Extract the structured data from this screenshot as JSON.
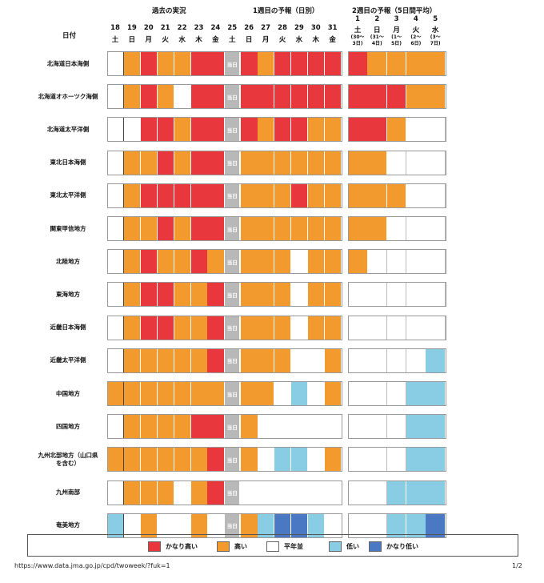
{
  "header": {
    "date_label": "日付",
    "past_title": "過去の実況",
    "week1_title": "1週目の予報（日別）",
    "week2_title": "2週目の予報（5日間平均）"
  },
  "colors": {
    "red": "#e8383d",
    "orange": "#f39a2e",
    "white": "#ffffff",
    "lightblue": "#88cde3",
    "blue": "#4b78c2",
    "gray": "#b8b8b8"
  },
  "days": [
    {
      "date": "18",
      "dow": "土"
    },
    {
      "date": "19",
      "dow": "日"
    },
    {
      "date": "20",
      "dow": "月"
    },
    {
      "date": "21",
      "dow": "火"
    },
    {
      "date": "22",
      "dow": "水"
    },
    {
      "date": "23",
      "dow": "木"
    },
    {
      "date": "24",
      "dow": "金"
    },
    {
      "date": "25",
      "dow": "土"
    },
    {
      "date": "26",
      "dow": "日"
    },
    {
      "date": "27",
      "dow": "月"
    },
    {
      "date": "28",
      "dow": "火"
    },
    {
      "date": "29",
      "dow": "水"
    },
    {
      "date": "30",
      "dow": "木"
    },
    {
      "date": "31",
      "dow": "金"
    }
  ],
  "week2_days": [
    {
      "date": "1",
      "dow": "土",
      "range": [
        "(30〜",
        "3日)"
      ]
    },
    {
      "date": "2",
      "dow": "日",
      "range": [
        "(31〜",
        "4日)"
      ]
    },
    {
      "date": "3",
      "dow": "月",
      "range": [
        "(1〜",
        "5日)"
      ]
    },
    {
      "date": "4",
      "dow": "火",
      "range": [
        "(2〜",
        "6日)"
      ]
    },
    {
      "date": "5",
      "dow": "水",
      "range": [
        "(3〜",
        "7日)"
      ]
    }
  ],
  "today_label": "当日",
  "rows": [
    {
      "label": [
        "北海道日本海側"
      ],
      "daily": [
        "W",
        "O",
        "R",
        "O",
        "O",
        "R",
        "R",
        "T",
        "R",
        "O",
        "R",
        "R",
        "R",
        "R"
      ],
      "week2": [
        "R",
        "O",
        "O",
        "O",
        "O"
      ]
    },
    {
      "label": [
        "北海道オホーツク海側"
      ],
      "daily": [
        "W",
        "O",
        "R",
        "O",
        "W",
        "R",
        "R",
        "T",
        "R",
        "R",
        "R",
        "R",
        "R",
        "R"
      ],
      "week2": [
        "R",
        "R",
        "R",
        "O",
        "O"
      ]
    },
    {
      "label": [
        "北海道太平洋側"
      ],
      "daily": [
        "W",
        "W",
        "R",
        "R",
        "O",
        "R",
        "R",
        "T",
        "R",
        "O",
        "R",
        "R",
        "O",
        "O"
      ],
      "week2": [
        "R",
        "R",
        "O",
        "W",
        "W"
      ]
    },
    {
      "label": [
        "東北日本海側"
      ],
      "daily": [
        "W",
        "O",
        "O",
        "R",
        "O",
        "R",
        "R",
        "T",
        "O",
        "O",
        "O",
        "O",
        "O",
        "O"
      ],
      "week2": [
        "O",
        "O",
        "W",
        "W",
        "W"
      ]
    },
    {
      "label": [
        "東北太平洋側"
      ],
      "daily": [
        "W",
        "O",
        "R",
        "R",
        "R",
        "R",
        "R",
        "T",
        "O",
        "O",
        "O",
        "R",
        "O",
        "O"
      ],
      "week2": [
        "O",
        "O",
        "O",
        "W",
        "W"
      ]
    },
    {
      "label": [
        "関東甲信地方"
      ],
      "daily": [
        "W",
        "O",
        "O",
        "R",
        "O",
        "R",
        "R",
        "T",
        "O",
        "O",
        "O",
        "O",
        "O",
        "O"
      ],
      "week2": [
        "O",
        "O",
        "W",
        "W",
        "W"
      ]
    },
    {
      "label": [
        "北陸地方"
      ],
      "daily": [
        "W",
        "O",
        "R",
        "O",
        "O",
        "R",
        "O",
        "T",
        "O",
        "O",
        "O",
        "W",
        "O",
        "O"
      ],
      "week2": [
        "O",
        "W",
        "W",
        "W",
        "W"
      ]
    },
    {
      "label": [
        "東海地方"
      ],
      "daily": [
        "W",
        "O",
        "R",
        "R",
        "O",
        "O",
        "R",
        "T",
        "O",
        "O",
        "O",
        "W",
        "O",
        "O"
      ],
      "week2": [
        "W",
        "W",
        "W",
        "W",
        "W"
      ]
    },
    {
      "label": [
        "近畿日本海側"
      ],
      "daily": [
        "W",
        "O",
        "R",
        "R",
        "O",
        "O",
        "R",
        "T",
        "O",
        "O",
        "O",
        "W",
        "O",
        "O"
      ],
      "week2": [
        "W",
        "W",
        "W",
        "W",
        "W"
      ]
    },
    {
      "label": [
        "近畿太平洋側"
      ],
      "daily": [
        "W",
        "O",
        "O",
        "O",
        "O",
        "O",
        "R",
        "T",
        "O",
        "O",
        "O",
        "W",
        "W",
        "O"
      ],
      "week2": [
        "W",
        "W",
        "W",
        "W",
        "L"
      ]
    },
    {
      "label": [
        "中国地方"
      ],
      "daily": [
        "O",
        "O",
        "O",
        "O",
        "O",
        "O",
        "O",
        "T",
        "O",
        "O",
        "W",
        "L",
        "W",
        "O"
      ],
      "week2": [
        "W",
        "W",
        "W",
        "L",
        "L"
      ]
    },
    {
      "label": [
        "四国地方"
      ],
      "daily": [
        "W",
        "O",
        "O",
        "O",
        "O",
        "R",
        "R",
        "T",
        "O",
        "W",
        "W",
        "W",
        "W",
        "W"
      ],
      "week2": [
        "W",
        "W",
        "W",
        "L",
        "L"
      ]
    },
    {
      "label": [
        "九州北部地方（山口県",
        "を含む）"
      ],
      "daily": [
        "O",
        "O",
        "O",
        "O",
        "O",
        "O",
        "R",
        "T",
        "O",
        "W",
        "L",
        "L",
        "W",
        "O"
      ],
      "week2": [
        "W",
        "W",
        "W",
        "L",
        "L"
      ]
    },
    {
      "label": [
        "九州南部"
      ],
      "daily": [
        "W",
        "O",
        "O",
        "O",
        "W",
        "O",
        "R",
        "T",
        "W",
        "W",
        "W",
        "W",
        "W",
        "W"
      ],
      "week2": [
        "W",
        "W",
        "L",
        "L",
        "L"
      ]
    },
    {
      "label": [
        "奄美地方"
      ],
      "daily": [
        "L",
        "W",
        "O",
        "W",
        "W",
        "O",
        "W",
        "T",
        "O",
        "L",
        "B",
        "B",
        "L",
        "W"
      ],
      "week2": [
        "W",
        "W",
        "L",
        "L",
        "B"
      ]
    }
  ],
  "legend": [
    {
      "key": "R",
      "label": "かなり高い",
      "color": "#e8383d"
    },
    {
      "key": "O",
      "label": "高い",
      "color": "#f39a2e"
    },
    {
      "key": "W",
      "label": "平年並",
      "color": "#ffffff"
    },
    {
      "key": "L",
      "label": "低い",
      "color": "#88cde3"
    },
    {
      "key": "B",
      "label": "かなり低い",
      "color": "#4b78c2"
    }
  ],
  "footer": {
    "url": "https://www.data.jma.go.jp/cpd/twoweek/?fuk=1",
    "page": "1/2"
  }
}
